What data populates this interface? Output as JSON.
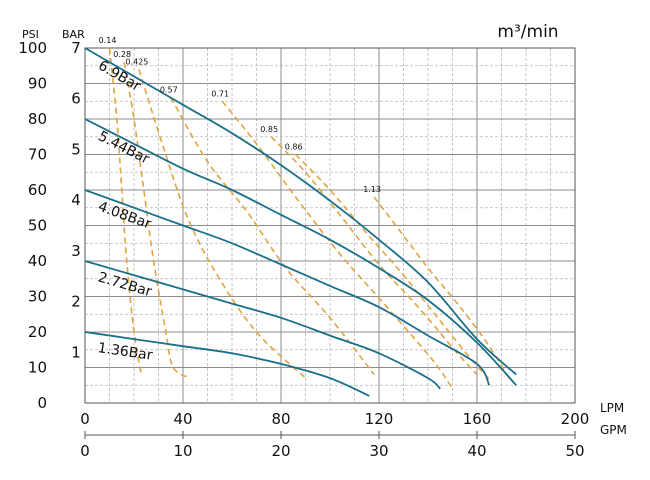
{
  "chart_data": {
    "type": "line",
    "flow_unit_label": "m³/min",
    "axes": {
      "x_lpm": {
        "label": "LPM",
        "ticks": [
          0,
          40,
          80,
          120,
          160,
          200
        ],
        "range": [
          0,
          200
        ]
      },
      "x_gpm": {
        "label": "GPM",
        "ticks": [
          0,
          10,
          20,
          30,
          40,
          50
        ],
        "range": [
          0,
          50
        ]
      },
      "y_psi": {
        "label": "PSI",
        "ticks": [
          0,
          10,
          20,
          30,
          40,
          50,
          60,
          70,
          80,
          90,
          100
        ],
        "range": [
          0,
          100
        ]
      },
      "y_bar": {
        "label": "BAR",
        "ticks": [
          1,
          2,
          3,
          4,
          5,
          6,
          7
        ],
        "range": [
          0,
          7
        ]
      }
    },
    "grid": true,
    "pressure_curves": [
      {
        "name": "6.9Bar",
        "color": "#1a6f8a",
        "points": [
          [
            0,
            100
          ],
          [
            20,
            92
          ],
          [
            40,
            84
          ],
          [
            60,
            76
          ],
          [
            80,
            67
          ],
          [
            100,
            57
          ],
          [
            120,
            46
          ],
          [
            140,
            34
          ],
          [
            160,
            18
          ],
          [
            176,
            8
          ]
        ]
      },
      {
        "name": "5.44Bar",
        "color": "#1a6f8a",
        "points": [
          [
            0,
            80
          ],
          [
            20,
            73
          ],
          [
            40,
            66
          ],
          [
            60,
            60
          ],
          [
            80,
            53
          ],
          [
            100,
            46
          ],
          [
            120,
            38
          ],
          [
            140,
            29
          ],
          [
            160,
            17
          ],
          [
            176,
            5
          ]
        ]
      },
      {
        "name": "4.08Bar",
        "color": "#1a6f8a",
        "points": [
          [
            0,
            60
          ],
          [
            20,
            55
          ],
          [
            40,
            50
          ],
          [
            60,
            45
          ],
          [
            80,
            39
          ],
          [
            100,
            33
          ],
          [
            120,
            27
          ],
          [
            140,
            19
          ],
          [
            160,
            11
          ],
          [
            165,
            5
          ]
        ]
      },
      {
        "name": "2.72Bar",
        "color": "#1a6f8a",
        "points": [
          [
            0,
            40
          ],
          [
            20,
            36
          ],
          [
            40,
            32
          ],
          [
            60,
            28
          ],
          [
            80,
            24
          ],
          [
            100,
            19
          ],
          [
            120,
            14
          ],
          [
            140,
            7
          ],
          [
            145,
            4
          ]
        ]
      },
      {
        "name": "1.36Bar",
        "color": "#1a6f8a",
        "points": [
          [
            0,
            20
          ],
          [
            20,
            18
          ],
          [
            40,
            16
          ],
          [
            60,
            14
          ],
          [
            80,
            11
          ],
          [
            100,
            7
          ],
          [
            116,
            2
          ]
        ]
      }
    ],
    "flow_curves": [
      {
        "name": "0.14",
        "color": "#e0a440",
        "points": [
          [
            10,
            100
          ],
          [
            13,
            80
          ],
          [
            15,
            60
          ],
          [
            17,
            40
          ],
          [
            20,
            20
          ],
          [
            23,
            8
          ]
        ]
      },
      {
        "name": "0.28",
        "color": "#e0a440",
        "points": [
          [
            16,
            96
          ],
          [
            20,
            80
          ],
          [
            24,
            60
          ],
          [
            28,
            40
          ],
          [
            33,
            20
          ],
          [
            36,
            10
          ],
          [
            43,
            7
          ]
        ]
      },
      {
        "name": "0.425",
        "color": "#e0a440",
        "points": [
          [
            22,
            94
          ],
          [
            32,
            72
          ],
          [
            42,
            52
          ],
          [
            54,
            36
          ],
          [
            70,
            20
          ],
          [
            90,
            7
          ]
        ]
      },
      {
        "name": "0.57",
        "color": "#e0a440",
        "points": [
          [
            35,
            86
          ],
          [
            50,
            68
          ],
          [
            66,
            54
          ],
          [
            82,
            38
          ],
          [
            100,
            24
          ],
          [
            118,
            8
          ]
        ]
      },
      {
        "name": "0.71",
        "color": "#e0a440",
        "points": [
          [
            56,
            85
          ],
          [
            70,
            73
          ],
          [
            86,
            58
          ],
          [
            104,
            42
          ],
          [
            122,
            28
          ],
          [
            142,
            12
          ],
          [
            150,
            4
          ]
        ]
      },
      {
        "name": "0.85",
        "color": "#e0a440",
        "points": [
          [
            76,
            75
          ],
          [
            90,
            65
          ],
          [
            104,
            53
          ],
          [
            120,
            39
          ],
          [
            136,
            27
          ],
          [
            152,
            14
          ],
          [
            160,
            8
          ]
        ]
      },
      {
        "name": "0.86",
        "color": "#e0a440",
        "points": [
          [
            86,
            70
          ],
          [
            100,
            60
          ],
          [
            116,
            47
          ],
          [
            130,
            36
          ],
          [
            144,
            24
          ],
          [
            158,
            12
          ],
          [
            166,
            6
          ]
        ]
      },
      {
        "name": "1.13",
        "color": "#e0a440",
        "points": [
          [
            118,
            58
          ],
          [
            128,
            49
          ],
          [
            140,
            38
          ],
          [
            152,
            28
          ],
          [
            164,
            17
          ],
          [
            174,
            6
          ]
        ]
      }
    ]
  }
}
